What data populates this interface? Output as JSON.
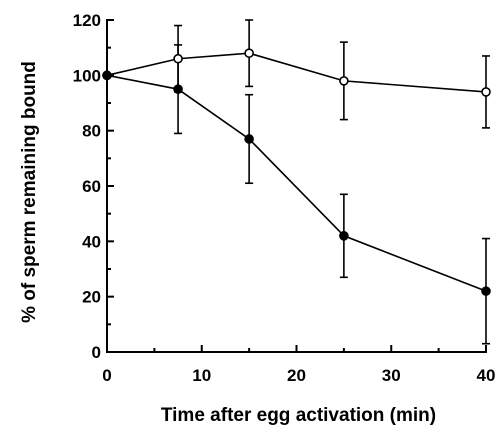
{
  "chart_data": {
    "type": "line",
    "title": "",
    "xlabel": "Time after egg activation (min)",
    "ylabel": "% of sperm remaining bound",
    "xlim": [
      0,
      40
    ],
    "ylim": [
      0,
      120
    ],
    "x_ticks": [
      0,
      10,
      20,
      30,
      40
    ],
    "y_ticks": [
      0,
      20,
      40,
      60,
      80,
      100,
      120
    ],
    "x_tick_labels": [
      "0",
      "10",
      "20",
      "30",
      "40"
    ],
    "y_tick_labels": [
      "0",
      "20",
      "40",
      "60",
      "80",
      "100",
      "120"
    ],
    "grid": false,
    "legend": "none",
    "series": [
      {
        "marker": "open-circle",
        "color": "#000000",
        "x": [
          0,
          7.5,
          15,
          25,
          40
        ],
        "y": [
          100,
          106,
          108,
          98,
          94
        ],
        "err": [
          0,
          12,
          12,
          14,
          13
        ]
      },
      {
        "marker": "filled-circle",
        "color": "#000000",
        "x": [
          0,
          7.5,
          15,
          25,
          40
        ],
        "y": [
          100,
          95,
          77,
          42,
          22
        ],
        "err": [
          0,
          16,
          16,
          15,
          19
        ]
      }
    ]
  }
}
